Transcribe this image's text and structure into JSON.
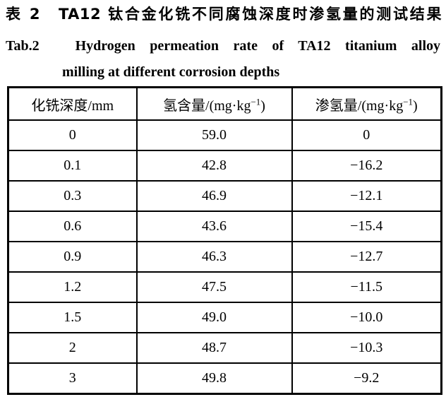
{
  "title": {
    "cn": "表 2　TA12 钛合金化铣不同腐蚀深度时渗氢量的测试结果",
    "en_line1": "Tab.2　Hydrogen permeation rate of TA12 titanium alloy",
    "en_line2": "milling at different corrosion depths"
  },
  "table": {
    "headers": [
      {
        "pre": "化铣深度/mm",
        "sup": "",
        "post": ""
      },
      {
        "pre": "氢含量/(mg·kg",
        "sup": "−1",
        "post": ")"
      },
      {
        "pre": "渗氢量/(mg·kg",
        "sup": "−1",
        "post": ")"
      }
    ],
    "rows": [
      [
        "0",
        "59.0",
        "0"
      ],
      [
        "0.1",
        "42.8",
        "−16.2"
      ],
      [
        "0.3",
        "46.9",
        "−12.1"
      ],
      [
        "0.6",
        "43.6",
        "−15.4"
      ],
      [
        "0.9",
        "46.3",
        "−12.7"
      ],
      [
        "1.2",
        "47.5",
        "−11.5"
      ],
      [
        "1.5",
        "49.0",
        "−10.0"
      ],
      [
        "2",
        "48.7",
        "−10.3"
      ],
      [
        "3",
        "49.8",
        "−9.2"
      ]
    ]
  },
  "chart_data": {
    "type": "table",
    "title": "表 2 TA12 钛合金化铣不同腐蚀深度时渗氢量的测试结果 / Tab.2 Hydrogen permeation rate of TA12 titanium alloy milling at different corrosion depths",
    "columns": [
      "化铣深度/mm",
      "氢含量/(mg·kg−1)",
      "渗氢量/(mg·kg−1)"
    ],
    "rows": [
      [
        0,
        59.0,
        0
      ],
      [
        0.1,
        42.8,
        -16.2
      ],
      [
        0.3,
        46.9,
        -12.1
      ],
      [
        0.6,
        43.6,
        -15.4
      ],
      [
        0.9,
        46.3,
        -12.7
      ],
      [
        1.2,
        47.5,
        -11.5
      ],
      [
        1.5,
        49.0,
        -10.0
      ],
      [
        2,
        48.7,
        -10.3
      ],
      [
        3,
        49.8,
        -9.2
      ]
    ]
  }
}
